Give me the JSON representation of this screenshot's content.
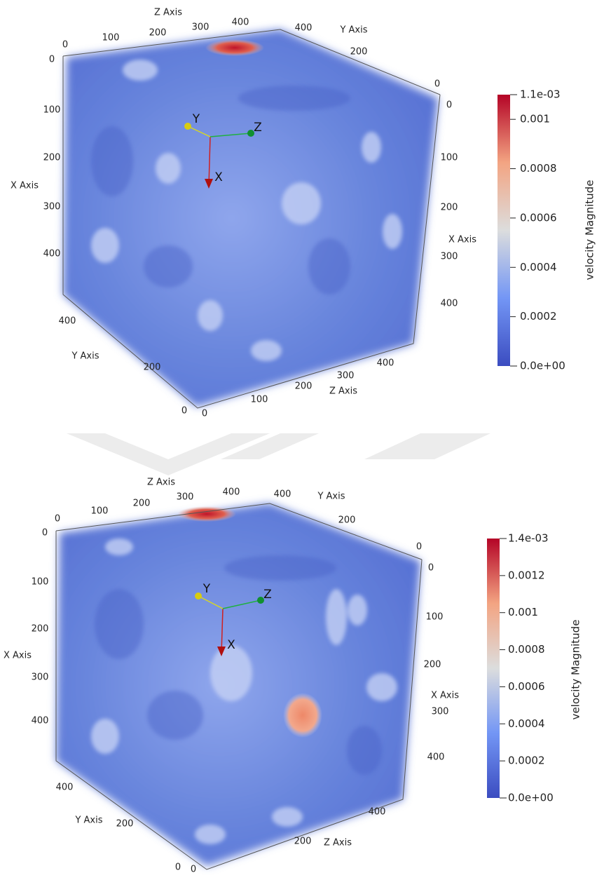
{
  "panels": [
    {
      "axis_titles": [
        "Z Axis",
        "Y Axis",
        "X Axis",
        "X Axis",
        "Y Axis",
        "Z Axis"
      ],
      "tick_groups": [
        [
          0,
          100,
          200,
          300,
          400
        ],
        [
          400,
          200,
          0
        ],
        [
          0,
          100,
          200,
          300,
          400
        ],
        [
          0,
          100,
          200,
          300,
          400
        ],
        [
          400,
          200,
          0
        ],
        [
          0,
          100,
          200,
          300,
          400
        ]
      ],
      "glyph": [
        "X",
        "Y",
        "Z"
      ],
      "colorbar": {
        "title": "velocity Magnitude",
        "range": [
          {
            "value": 0,
            "label": "0.0e+00"
          },
          {
            "value": 0.0011,
            "label": "1.1e-03"
          }
        ],
        "ticks": [
          0.0002,
          0.0004,
          0.0006,
          0.0008,
          0.001
        ]
      }
    },
    {
      "axis_titles": [
        "Z Axis",
        "Y Axis",
        "X Axis",
        "X Axis",
        "Y Axis",
        "Z Axis"
      ],
      "tick_groups": [
        [
          0,
          100,
          200,
          300,
          400
        ],
        [
          400,
          200,
          0
        ],
        [
          0,
          100,
          200,
          300,
          400
        ],
        [
          0,
          100,
          200,
          300,
          400
        ],
        [
          400,
          200,
          0
        ],
        [
          0,
          200,
          400
        ]
      ],
      "glyph": [
        "X",
        "Y",
        "Z"
      ],
      "colorbar": {
        "title": "velocity Magnitude",
        "range": [
          {
            "value": 0,
            "label": "0.0e+00"
          },
          {
            "value": 0.0014,
            "label": "1.4e-03"
          }
        ],
        "ticks": [
          0.0002,
          0.0004,
          0.0006,
          0.0008,
          0.001,
          0.0012
        ]
      }
    }
  ]
}
